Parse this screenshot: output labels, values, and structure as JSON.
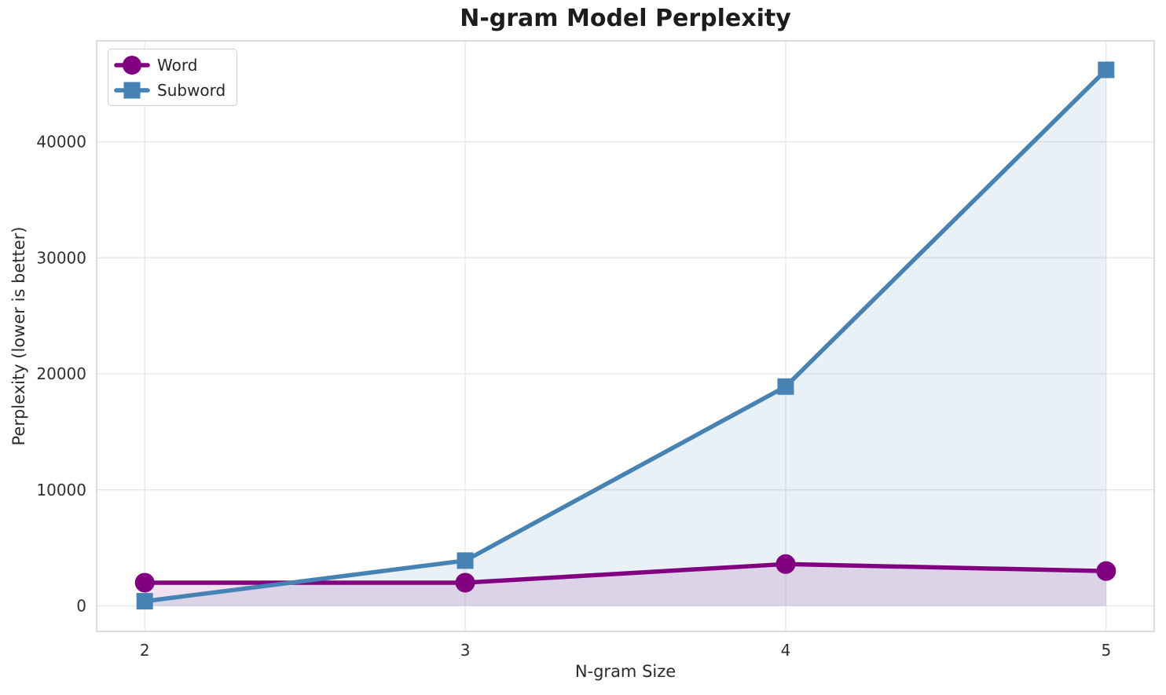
{
  "chart_data": {
    "type": "line",
    "title": "N-gram Model Perplexity",
    "xlabel": "N-gram Size",
    "ylabel": "Perplexity (lower is better)",
    "x": [
      2,
      3,
      4,
      5
    ],
    "xticks": [
      2,
      3,
      4,
      5
    ],
    "yticks": [
      0,
      10000,
      20000,
      30000,
      40000
    ],
    "xlim": [
      1.85,
      5.15
    ],
    "ylim": [
      -2200,
      48700
    ],
    "grid": true,
    "legend_position": "upper-left",
    "area_fill_to_zero": true,
    "series": [
      {
        "name": "Word",
        "marker": "circle",
        "color": "#800080",
        "fill_opacity": 0.12,
        "values": [
          2000,
          2000,
          3600,
          3000
        ]
      },
      {
        "name": "Subword",
        "marker": "square",
        "color": "#4682B4",
        "fill_opacity": 0.12,
        "values": [
          400,
          3900,
          18900,
          46200
        ]
      }
    ]
  }
}
